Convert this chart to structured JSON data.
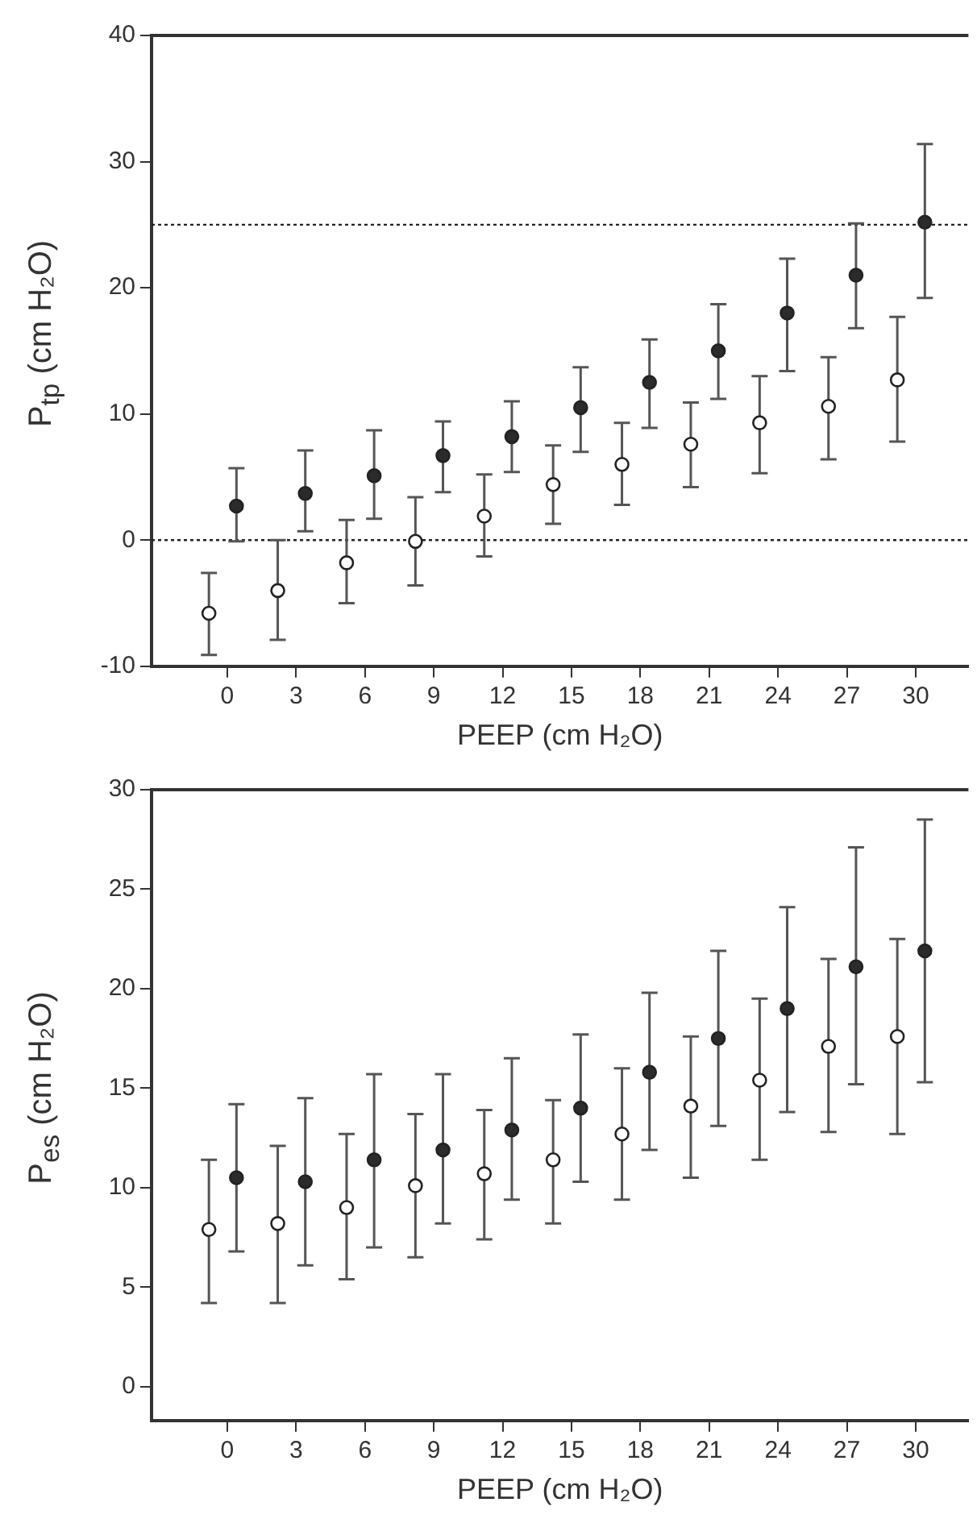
{
  "chart_data": [
    {
      "type": "scatter",
      "xlabel": "PEEP (cm H₂O)",
      "ylabel": "P$_{tp}$ (cm H₂O)",
      "xlim": [
        -3.3,
        32.3
      ],
      "xticks": [
        0,
        3,
        6,
        9,
        12,
        15,
        18,
        21,
        24,
        27,
        30
      ],
      "ylim": [
        -10,
        40
      ],
      "yticks": [
        -10,
        0,
        10,
        20,
        30,
        40
      ],
      "grid": false,
      "legend": false,
      "marker": "circle",
      "ref_lines": [
        {
          "axis": "y",
          "value": 0,
          "line_style": "dotted",
          "color": "#222222"
        },
        {
          "axis": "y",
          "value": 25,
          "line_style": "dotted",
          "color": "#222222"
        }
      ],
      "series": [
        {
          "color": "#ffffff",
          "x": [
            -0.8,
            2.2,
            5.2,
            8.2,
            11.2,
            14.2,
            17.2,
            20.2,
            23.2,
            26.2,
            29.2
          ],
          "values": [
            -5.8,
            -4.0,
            -1.8,
            -0.1,
            1.9,
            4.4,
            6.0,
            7.6,
            9.3,
            10.6,
            12.7
          ],
          "errors": [
            [
              -9.1,
              -2.6
            ],
            [
              -7.9,
              0
            ],
            [
              -5.0,
              1.6
            ],
            [
              -3.6,
              3.4
            ],
            [
              -1.3,
              5.2
            ],
            [
              1.3,
              7.5
            ],
            [
              2.8,
              9.3
            ],
            [
              4.2,
              10.9
            ],
            [
              5.3,
              13.0
            ],
            [
              6.4,
              14.5
            ],
            [
              7.8,
              17.7
            ]
          ]
        },
        {
          "color": "#2b2b2b",
          "x": [
            0.4,
            3.4,
            6.4,
            9.4,
            12.4,
            15.4,
            18.4,
            21.4,
            24.4,
            27.4,
            30.4
          ],
          "values": [
            2.7,
            3.7,
            5.1,
            6.7,
            8.2,
            10.5,
            12.5,
            15.0,
            18.0,
            21.0,
            25.2
          ],
          "errors": [
            [
              -0.1,
              5.7
            ],
            [
              0.7,
              7.1
            ],
            [
              1.7,
              8.7
            ],
            [
              3.8,
              9.4
            ],
            [
              5.4,
              11.0
            ],
            [
              7.0,
              13.7
            ],
            [
              8.9,
              15.9
            ],
            [
              11.2,
              18.7
            ],
            [
              13.4,
              22.3
            ],
            [
              16.8,
              25.1
            ],
            [
              19.2,
              31.4
            ]
          ]
        }
      ]
    },
    {
      "type": "scatter",
      "xlabel": "PEEP (cm H₂O)",
      "ylabel": "P$_{es}$ (cm H₂O)",
      "xlim": [
        -3.3,
        32.3
      ],
      "xticks": [
        0,
        3,
        6,
        9,
        12,
        15,
        18,
        21,
        24,
        27,
        30
      ],
      "ylim": [
        -1.7,
        30
      ],
      "yticks": [
        0,
        5,
        10,
        15,
        20,
        25,
        30
      ],
      "grid": false,
      "legend": false,
      "marker": "circle",
      "series": [
        {
          "color": "#ffffff",
          "x": [
            -0.8,
            2.2,
            5.2,
            8.2,
            11.2,
            14.2,
            17.2,
            20.2,
            23.2,
            26.2,
            29.2
          ],
          "values": [
            7.9,
            8.2,
            9.0,
            10.1,
            10.7,
            11.4,
            12.7,
            14.1,
            15.4,
            17.1,
            17.6
          ],
          "errors": [
            [
              4.2,
              11.4
            ],
            [
              4.2,
              12.1
            ],
            [
              5.4,
              12.7
            ],
            [
              6.5,
              13.7
            ],
            [
              7.4,
              13.9
            ],
            [
              8.2,
              14.4
            ],
            [
              9.4,
              16.0
            ],
            [
              10.5,
              17.6
            ],
            [
              11.4,
              19.5
            ],
            [
              12.8,
              21.5
            ],
            [
              12.7,
              22.5
            ]
          ]
        },
        {
          "color": "#2b2b2b",
          "x": [
            0.4,
            3.4,
            6.4,
            9.4,
            12.4,
            15.4,
            18.4,
            21.4,
            24.4,
            27.4,
            30.4
          ],
          "values": [
            10.5,
            10.3,
            11.4,
            11.9,
            12.9,
            14.0,
            15.8,
            17.5,
            19.0,
            21.1,
            21.9
          ],
          "errors": [
            [
              6.8,
              14.2
            ],
            [
              6.1,
              14.5
            ],
            [
              7.0,
              15.7
            ],
            [
              8.2,
              15.7
            ],
            [
              9.4,
              16.5
            ],
            [
              10.3,
              17.7
            ],
            [
              11.9,
              19.8
            ],
            [
              13.1,
              21.9
            ],
            [
              13.8,
              24.1
            ],
            [
              15.2,
              27.1
            ],
            [
              15.3,
              28.5
            ]
          ]
        }
      ]
    }
  ]
}
